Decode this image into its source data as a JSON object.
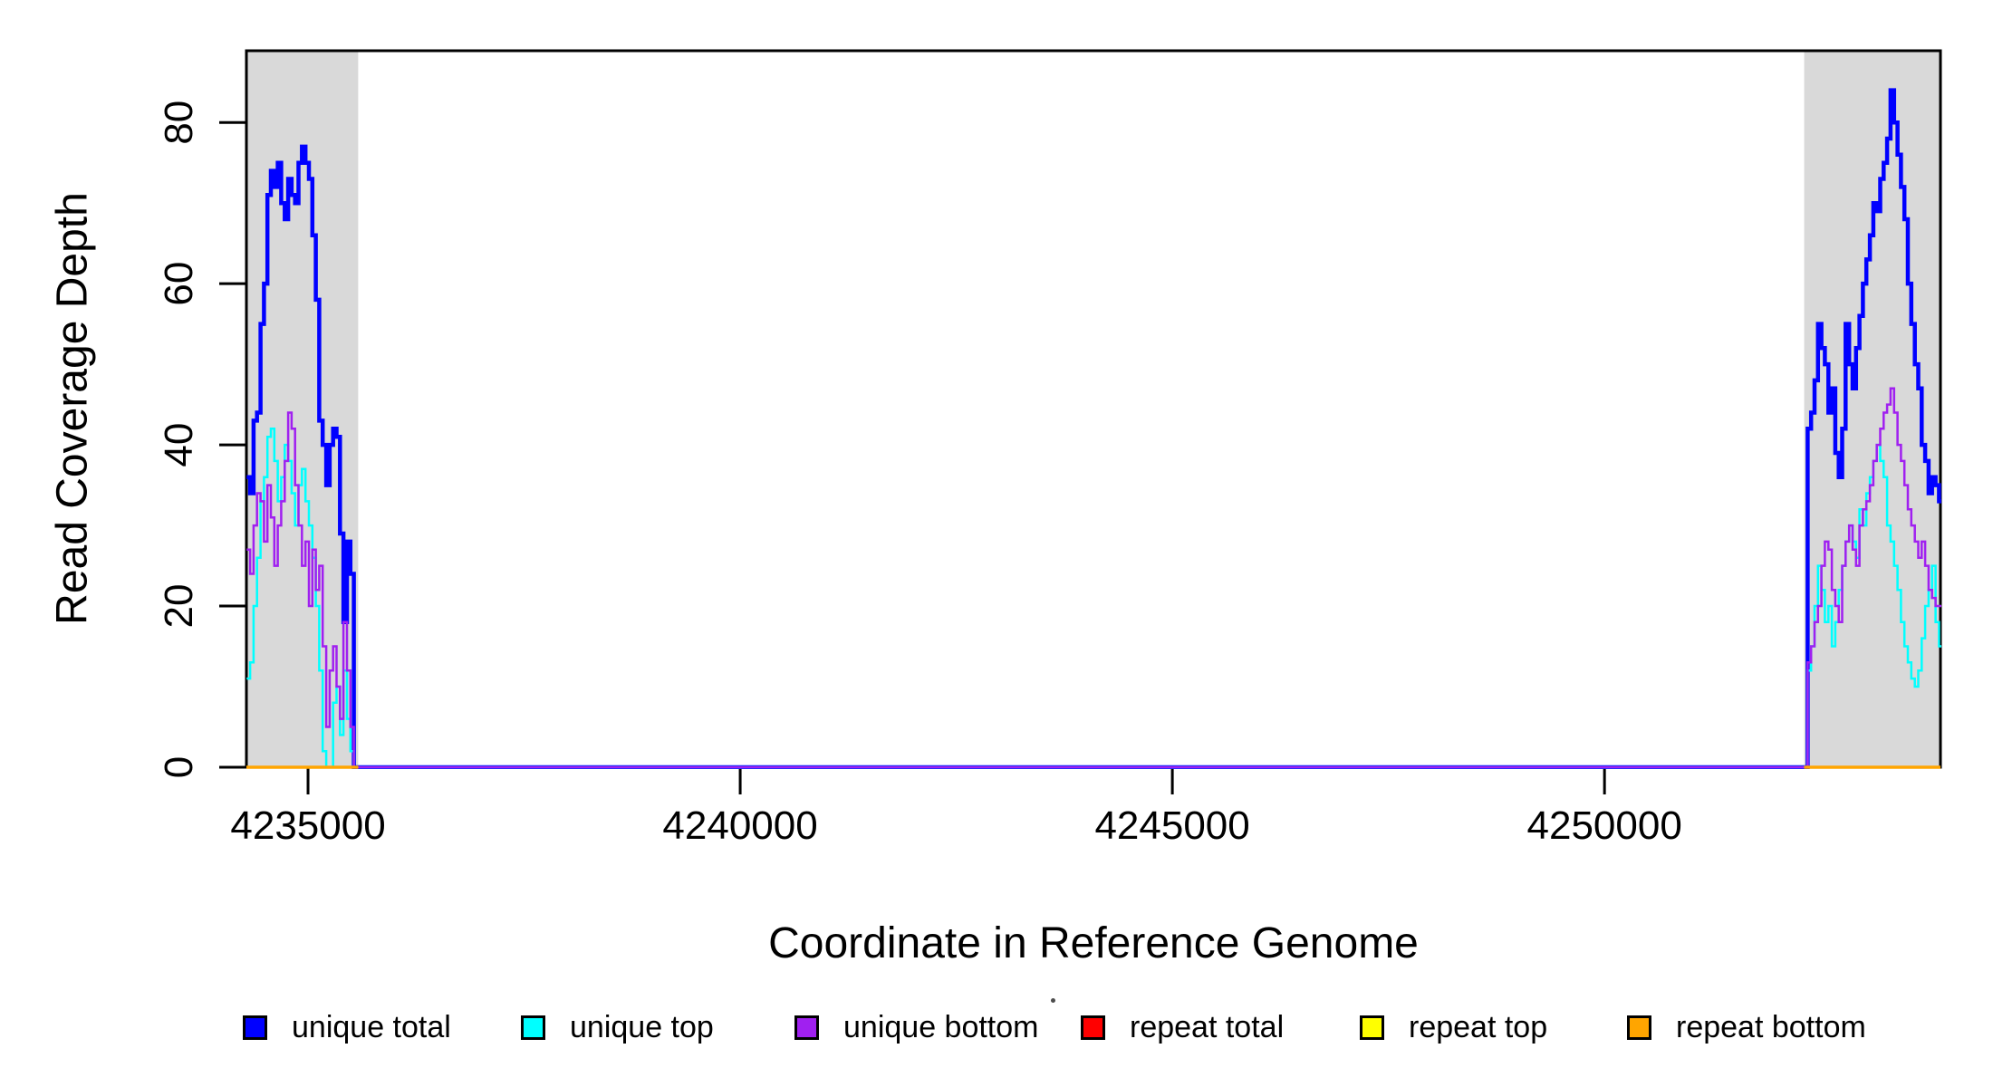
{
  "chart_data": {
    "type": "line",
    "line_style": "step",
    "title": "",
    "xlabel": "Coordinate in Reference Genome",
    "ylabel": "Read Coverage Depth",
    "xlim": [
      4234287,
      4253887
    ],
    "ylim": [
      0,
      88.9
    ],
    "x_ticks": [
      4235000,
      4240000,
      4245000,
      4250000
    ],
    "y_ticks": [
      0,
      20,
      40,
      60,
      80
    ],
    "grid": false,
    "background": "#FFFFFF",
    "frame_color": "#000000",
    "shaded_regions": [
      {
        "name": "repeat-region-left",
        "x0": 4234287,
        "x1": 4235580,
        "color": "#D9D9D9"
      },
      {
        "name": "repeat-region-right",
        "x0": 4252310,
        "x1": 4253887,
        "color": "#D9D9D9"
      }
    ],
    "series": [
      {
        "name": "unique total",
        "color": "#0000FF",
        "line_width": 4.5,
        "segments": [
          {
            "x0": 4234290,
            "dx": 40,
            "values": [
              36,
              34,
              43,
              44,
              55,
              60,
              71,
              74,
              72,
              75,
              70,
              68,
              73,
              71,
              70,
              75,
              77,
              75,
              73,
              66,
              58,
              43,
              40,
              35,
              40,
              42,
              41,
              29,
              18,
              28,
              24,
              0
            ]
          },
          {
            "x0": 4235570,
            "dx": 16740,
            "values": [
              0
            ]
          },
          {
            "x0": 4252310,
            "dx": 40,
            "values": [
              0,
              42,
              44,
              48,
              55,
              52,
              50,
              44,
              47,
              39,
              36,
              42,
              55,
              50,
              47,
              52,
              56,
              60,
              63,
              66,
              70,
              69,
              73,
              75,
              78,
              84,
              80,
              76,
              72,
              68,
              60,
              55,
              50,
              47,
              40,
              38,
              34,
              36,
              35,
              33
            ]
          }
        ]
      },
      {
        "name": "unique top",
        "color": "#00FFFF",
        "line_width": 2.5,
        "segments": [
          {
            "x0": 4234290,
            "dx": 40,
            "values": [
              11,
              13,
              20,
              26,
              33,
              36,
              41,
              42,
              38,
              33,
              36,
              40,
              38,
              34,
              30,
              35,
              37,
              33,
              30,
              26,
              20,
              12,
              2,
              0,
              0,
              8,
              10,
              4,
              12,
              6,
              2,
              0
            ]
          },
          {
            "x0": 4235570,
            "dx": 16740,
            "values": [
              0
            ]
          },
          {
            "x0": 4252310,
            "dx": 40,
            "values": [
              0,
              12,
              15,
              20,
              25,
              22,
              18,
              20,
              15,
              18,
              22,
              25,
              28,
              30,
              28,
              26,
              32,
              30,
              34,
              36,
              38,
              40,
              38,
              36,
              30,
              28,
              25,
              22,
              18,
              15,
              13,
              11,
              10,
              12,
              16,
              20,
              22,
              25,
              18,
              15
            ]
          }
        ]
      },
      {
        "name": "unique bottom",
        "color": "#A020F0",
        "line_width": 2.5,
        "segments": [
          {
            "x0": 4234290,
            "dx": 40,
            "values": [
              27,
              24,
              30,
              34,
              33,
              28,
              35,
              31,
              25,
              30,
              33,
              38,
              44,
              42,
              35,
              30,
              25,
              28,
              20,
              27,
              22,
              25,
              15,
              5,
              12,
              15,
              10,
              6,
              18,
              12,
              5,
              0
            ]
          },
          {
            "x0": 4235570,
            "dx": 16740,
            "values": [
              0
            ]
          },
          {
            "x0": 4252310,
            "dx": 40,
            "values": [
              0,
              13,
              15,
              18,
              20,
              25,
              28,
              27,
              22,
              20,
              18,
              25,
              28,
              30,
              27,
              25,
              30,
              32,
              33,
              35,
              38,
              40,
              42,
              44,
              45,
              47,
              44,
              40,
              38,
              35,
              32,
              30,
              28,
              26,
              28,
              25,
              22,
              21,
              20,
              20
            ]
          }
        ]
      },
      {
        "name": "repeat total",
        "color": "#FF0000",
        "line_width": 2.5,
        "segments": [
          {
            "x0": 4234287,
            "dx": 1293,
            "values": [
              0
            ]
          },
          {
            "x0": 4252310,
            "dx": 1577,
            "values": [
              0
            ]
          }
        ]
      },
      {
        "name": "repeat top",
        "color": "#FFFF00",
        "line_width": 2.5,
        "segments": [
          {
            "x0": 4234287,
            "dx": 1293,
            "values": [
              0
            ]
          },
          {
            "x0": 4252310,
            "dx": 1577,
            "values": [
              0
            ]
          }
        ]
      },
      {
        "name": "repeat bottom",
        "color": "#FFA500",
        "line_width": 3.5,
        "segments": [
          {
            "x0": 4234287,
            "dx": 1293,
            "values": [
              0
            ]
          },
          {
            "x0": 4252310,
            "dx": 1577,
            "values": [
              0
            ]
          }
        ]
      }
    ],
    "legend": {
      "position": "bottom",
      "items": [
        {
          "label": "unique total",
          "color": "#0000FF"
        },
        {
          "label": "unique top",
          "color": "#00FFFF"
        },
        {
          "label": "unique bottom",
          "color": "#A020F0"
        },
        {
          "label": "repeat total",
          "color": "#FF0000"
        },
        {
          "label": "repeat top",
          "color": "#FFFF00"
        },
        {
          "label": "repeat bottom",
          "color": "#FFA500"
        }
      ]
    }
  }
}
